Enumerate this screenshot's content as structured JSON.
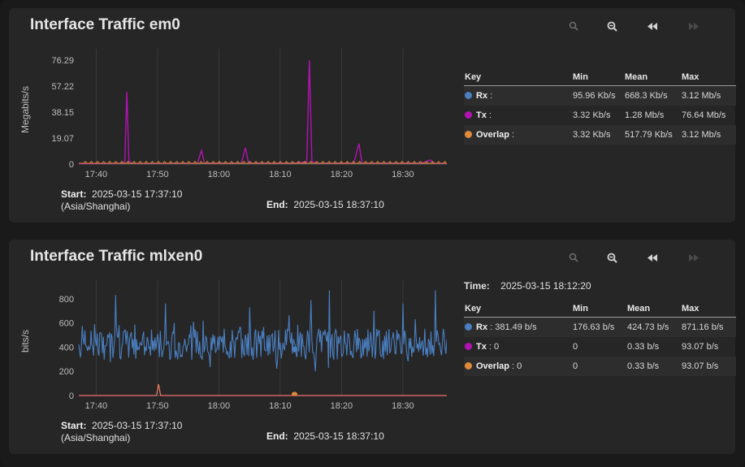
{
  "colors": {
    "rx": "#4a7fc1",
    "tx": "#b312b3",
    "overlap": "#de8a3a"
  },
  "controls": {
    "zoom_in": "zoom-in-icon",
    "zoom_out": "zoom-out-icon",
    "rewind": "rewind-icon",
    "forward": "forward-icon"
  },
  "panel1": {
    "title": "Interface Traffic em0",
    "start_label": "Start:",
    "start_value": "2025-03-15 17:37:10",
    "timezone": "(Asia/Shanghai)",
    "end_label": "End:",
    "end_value": "2025-03-15 18:37:10",
    "key": {
      "headers": {
        "key": "Key",
        "min": "Min",
        "mean": "Mean",
        "max": "Max"
      },
      "rows": [
        {
          "name": "Rx",
          "suffix": " :",
          "min": "95.96 Kb/s",
          "mean": "668.3 Kb/s",
          "max": "3.12 Mb/s"
        },
        {
          "name": "Tx",
          "suffix": " :",
          "min": "3.32 Kb/s",
          "mean": "1.28 Mb/s",
          "max": "76.64 Mb/s"
        },
        {
          "name": "Overlap",
          "suffix": " :",
          "min": "3.32 Kb/s",
          "mean": "517.79 Kb/s",
          "max": "3.12 Mb/s"
        }
      ]
    }
  },
  "panel2": {
    "title": "Interface Traffic mlxen0",
    "time_label": "Time:",
    "time_value": "2025-03-15 18:12:20",
    "start_label": "Start:",
    "start_value": "2025-03-15 17:37:10",
    "timezone": "(Asia/Shanghai)",
    "end_label": "End:",
    "end_value": "2025-03-15 18:37:10",
    "key": {
      "headers": {
        "key": "Key",
        "min": "Min",
        "mean": "Mean",
        "max": "Max"
      },
      "rows": [
        {
          "name": "Rx",
          "suffix": " : 381.49 b/s",
          "min": "176.63 b/s",
          "mean": "424.73 b/s",
          "max": "871.16 b/s"
        },
        {
          "name": "Tx",
          "suffix": " : 0",
          "min": "0",
          "mean": "0.33 b/s",
          "max": "93.07 b/s"
        },
        {
          "name": "Overlap",
          "suffix": " : 0",
          "min": "0",
          "mean": "0.33 b/s",
          "max": "93.07 b/s"
        }
      ]
    }
  },
  "chart_data": [
    {
      "type": "line",
      "title": "Interface Traffic em0",
      "ylabel": "Megabits/s",
      "y_ticks": [
        "0",
        "19.07",
        "38.15",
        "57.22",
        "76.29"
      ],
      "y_tick_values": [
        0,
        19.07,
        38.15,
        57.22,
        76.29
      ],
      "ylim": [
        0,
        80
      ],
      "x_ticks": [
        "17:40",
        "17:50",
        "18:00",
        "18:10",
        "18:20",
        "18:30"
      ],
      "x_range": [
        "17:37:10",
        "18:37:10"
      ],
      "series": [
        {
          "name": "Tx",
          "points": [
            [
              "17:37:10",
              0.3
            ],
            [
              "17:41:30",
              0.5
            ],
            [
              "17:44:00",
              0.6
            ],
            [
              "17:44:40",
              1.5
            ],
            [
              "17:45:00",
              53
            ],
            [
              "17:45:20",
              2
            ],
            [
              "17:46:00",
              0.5
            ],
            [
              "17:56:30",
              0.6
            ],
            [
              "17:57:10",
              10
            ],
            [
              "17:57:40",
              0.6
            ],
            [
              "18:02:30",
              0.6
            ],
            [
              "18:03:40",
              0.8
            ],
            [
              "18:04:20",
              12
            ],
            [
              "18:04:50",
              0.6
            ],
            [
              "18:12:00",
              0.6
            ],
            [
              "18:14:20",
              1.5
            ],
            [
              "18:14:45",
              76.3
            ],
            [
              "18:15:10",
              2
            ],
            [
              "18:16:00",
              0.6
            ],
            [
              "18:22:00",
              0.6
            ],
            [
              "18:22:50",
              15
            ],
            [
              "18:23:20",
              0.6
            ],
            [
              "18:33:00",
              0.6
            ],
            [
              "18:34:30",
              3
            ],
            [
              "18:35:00",
              0.6
            ],
            [
              "18:37:10",
              0.4
            ]
          ]
        },
        {
          "name": "Rx",
          "points": [
            [
              "17:37:10",
              0.6
            ],
            [
              "18:37:10",
              0.6
            ]
          ]
        },
        {
          "name": "Overlap",
          "points": [
            [
              "17:37:10",
              0.6
            ],
            [
              "18:37:10",
              0.6
            ]
          ]
        }
      ]
    },
    {
      "type": "line",
      "title": "Interface Traffic mlxen0",
      "ylabel": "bits/s",
      "y_ticks": [
        "0",
        "200",
        "400",
        "600",
        "800"
      ],
      "y_tick_values": [
        0,
        200,
        400,
        600,
        800
      ],
      "ylim": [
        0,
        900
      ],
      "x_ticks": [
        "17:40",
        "17:50",
        "18:00",
        "18:10",
        "18:20",
        "18:30"
      ],
      "x_range": [
        "17:37:10",
        "18:37:10"
      ],
      "series": [
        {
          "name": "Rx",
          "min": 176.63,
          "mean": 424.73,
          "max": 871.16,
          "peaks": [
            [
              "17:39:40",
              590
            ],
            [
              "17:43:10",
              830
            ],
            [
              "17:51:20",
              760
            ],
            [
              "17:57:30",
              620
            ],
            [
              "18:05:00",
              730
            ],
            [
              "18:15:00",
              790
            ],
            [
              "18:18:00",
              870
            ],
            [
              "18:25:20",
              700
            ],
            [
              "18:30:00",
              760
            ],
            [
              "18:35:20",
              870
            ]
          ]
        },
        {
          "name": "Tx",
          "points": [
            [
              "17:37:10",
              0
            ],
            [
              "17:49:50",
              0
            ],
            [
              "17:50:10",
              93.07
            ],
            [
              "17:50:30",
              0
            ],
            [
              "18:37:10",
              0
            ]
          ]
        },
        {
          "name": "Overlap",
          "points": [
            [
              "17:37:10",
              0
            ],
            [
              "17:49:50",
              0
            ],
            [
              "17:50:10",
              93.07
            ],
            [
              "17:50:30",
              0
            ],
            [
              "18:37:10",
              0
            ]
          ]
        }
      ]
    }
  ]
}
